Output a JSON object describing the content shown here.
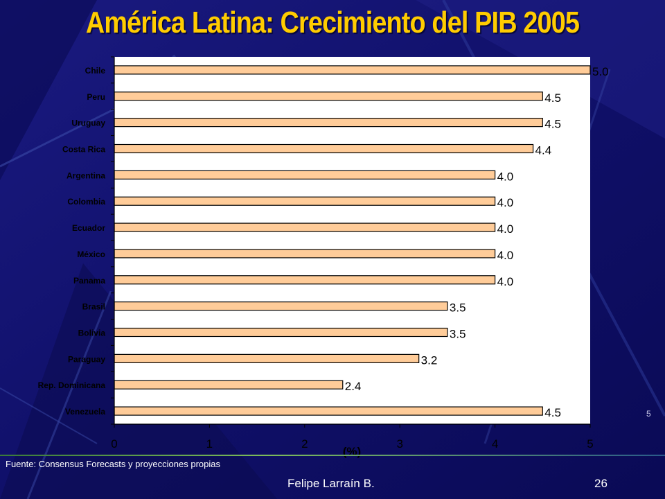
{
  "slide": {
    "title": "América Latina: Crecimiento del PIB 2005",
    "source": "Fuente: Consensus Forecasts y proyecciones propias",
    "author": "Felipe Larraín B.",
    "page_number": "26",
    "side_number": "5"
  },
  "colors": {
    "background": "#12126e",
    "bar_fill": "#ffcc99",
    "title": "#ffcc00",
    "text": "#ffffff"
  },
  "chart_data": {
    "type": "bar",
    "orientation": "horizontal",
    "title": "América Latina: Crecimiento del PIB 2005",
    "xlabel": "(%)",
    "ylabel": "",
    "xlim": [
      0,
      5
    ],
    "xticks": [
      "0",
      "1",
      "2",
      "3",
      "4",
      "5"
    ],
    "grid": false,
    "categories": [
      "Chile",
      "Peru",
      "Uruguay",
      "Costa Rica",
      "Argentina",
      "Colombia",
      "Ecuador",
      "México",
      "Panama",
      "Brasil",
      "Bolivia",
      "Paraguay",
      "Rep. Dominicana",
      "Venezuela"
    ],
    "values": [
      5.0,
      4.5,
      4.5,
      4.4,
      4.0,
      4.0,
      4.0,
      4.0,
      4.0,
      3.5,
      3.5,
      3.2,
      2.4,
      4.5
    ],
    "value_labels": [
      "5.0",
      "4.5",
      "4.5",
      "4.4",
      "4.0",
      "4.0",
      "4.0",
      "4.0",
      "4.0",
      "3.5",
      "3.5",
      "3.2",
      "2.4",
      "4.5"
    ]
  }
}
